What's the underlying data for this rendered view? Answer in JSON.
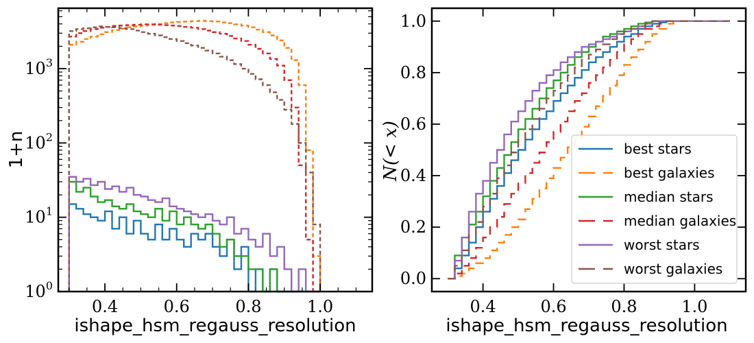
{
  "chart_data": [
    {
      "type": "histogram",
      "xlabel": "ishape_hsm_regauss_resolution",
      "ylabel": "1+n",
      "xlim": [
        0.27,
        1.145
      ],
      "ylim": [
        1,
        6500
      ],
      "yscale": "log",
      "x_ticks": [
        0.4,
        0.6,
        0.8,
        1.0
      ],
      "x_tick_labels": [
        "0.4",
        "0.6",
        "0.8",
        "1.0"
      ],
      "y_ticks": [
        1,
        10,
        100,
        1000
      ],
      "y_tick_labels": [
        {
          "base": "10",
          "exp": "0"
        },
        {
          "base": "10",
          "exp": "1"
        },
        {
          "base": "10",
          "exp": "2"
        },
        {
          "base": "10",
          "exp": "3"
        }
      ],
      "bin_edges": [
        0.3,
        0.32,
        0.34,
        0.36,
        0.38,
        0.4,
        0.42,
        0.44,
        0.46,
        0.48,
        0.5,
        0.52,
        0.54,
        0.56,
        0.58,
        0.6,
        0.62,
        0.64,
        0.66,
        0.68,
        0.7,
        0.72,
        0.74,
        0.76,
        0.78,
        0.8,
        0.82,
        0.84,
        0.86,
        0.88,
        0.9,
        0.92,
        0.94,
        0.96,
        0.98,
        1.0
      ],
      "series": [
        {
          "name": "best stars",
          "color": "#1f77b4",
          "dash": "solid",
          "values": [
            15,
            13,
            11,
            10,
            9,
            12,
            7,
            10,
            6,
            9,
            6,
            5,
            8,
            5,
            7,
            5,
            4,
            6,
            5,
            6,
            4,
            3,
            5,
            2,
            4,
            1,
            2,
            1,
            2,
            1,
            1,
            1,
            1,
            1,
            1
          ]
        },
        {
          "name": "best galaxies",
          "color": "#ff7f0e",
          "dash": "dashed",
          "values": [
            2100,
            2300,
            2500,
            2700,
            2900,
            3100,
            3300,
            3450,
            3600,
            3700,
            3800,
            3900,
            4000,
            4100,
            4200,
            4250,
            4300,
            4350,
            4400,
            4350,
            4300,
            4200,
            4100,
            3950,
            3800,
            3600,
            3350,
            3100,
            2800,
            2400,
            1900,
            1300,
            600,
            80,
            3
          ]
        },
        {
          "name": "median stars",
          "color": "#2ca02c",
          "dash": "solid",
          "values": [
            30,
            22,
            25,
            19,
            16,
            17,
            14,
            13,
            15,
            12,
            11,
            10,
            13,
            9,
            12,
            8,
            10,
            8,
            7,
            8,
            6,
            4,
            5,
            3,
            3,
            2,
            2,
            1,
            2,
            1,
            1,
            1,
            1,
            1,
            1
          ]
        },
        {
          "name": "median galaxies",
          "color": "#d62728",
          "dash": "dashed",
          "values": [
            2700,
            3000,
            3200,
            3400,
            3550,
            3650,
            3750,
            3800,
            3850,
            3900,
            3950,
            3950,
            3900,
            3850,
            3800,
            3750,
            3650,
            3550,
            3400,
            3250,
            3100,
            2950,
            2750,
            2550,
            2350,
            2100,
            1850,
            1600,
            1350,
            1100,
            700,
            300,
            50,
            5,
            1
          ]
        },
        {
          "name": "worst stars",
          "color": "#9467bd",
          "dash": "solid",
          "values": [
            35,
            30,
            33,
            27,
            30,
            24,
            26,
            22,
            25,
            20,
            19,
            17,
            16,
            18,
            14,
            13,
            12,
            11,
            10,
            11,
            9,
            8,
            10,
            6,
            7,
            5,
            4,
            6,
            3,
            4,
            2,
            1,
            2,
            1,
            1
          ]
        },
        {
          "name": "worst galaxies",
          "color": "#8c564b",
          "dash": "dashed",
          "values": [
            3200,
            3400,
            3500,
            3600,
            3700,
            3650,
            3600,
            3500,
            3400,
            3250,
            3100,
            2950,
            2800,
            2650,
            2500,
            2350,
            2200,
            2050,
            1900,
            1750,
            1600,
            1450,
            1300,
            1150,
            1000,
            850,
            720,
            600,
            480,
            380,
            280,
            180,
            100,
            40,
            8
          ]
        }
      ]
    },
    {
      "type": "line",
      "xlabel": "N(< x)",
      "xlabel_note": "",
      "x_axis_label": "ishape_hsm_regauss_resolution",
      "y_axis_label": "N(< x)",
      "xlim": [
        0.255,
        1.145
      ],
      "ylim": [
        -0.05,
        1.05
      ],
      "x_ticks": [
        0.4,
        0.6,
        0.8,
        1.0
      ],
      "x_tick_labels": [
        "0.4",
        "0.6",
        "0.8",
        "1.0"
      ],
      "y_ticks": [
        0.0,
        0.2,
        0.4,
        0.6,
        0.8,
        1.0
      ],
      "y_tick_labels": [
        "0.0",
        "0.2",
        "0.4",
        "0.6",
        "0.8",
        "1.0"
      ],
      "legend_position": "lower-right",
      "x": [
        0.3,
        0.32,
        0.34,
        0.36,
        0.38,
        0.4,
        0.42,
        0.44,
        0.46,
        0.48,
        0.5,
        0.52,
        0.54,
        0.56,
        0.58,
        0.6,
        0.62,
        0.64,
        0.66,
        0.68,
        0.7,
        0.72,
        0.74,
        0.76,
        0.78,
        0.8,
        0.82,
        0.84,
        0.86,
        0.88,
        0.9,
        0.92,
        0.94,
        0.96,
        0.98,
        1.0,
        1.02,
        1.04,
        1.06,
        1.08
      ],
      "series": [
        {
          "name": "best stars",
          "color": "#1f77b4",
          "dash": "solid",
          "values": [
            0.0,
            0.04,
            0.09,
            0.14,
            0.2,
            0.26,
            0.31,
            0.36,
            0.41,
            0.46,
            0.5,
            0.54,
            0.58,
            0.62,
            0.65,
            0.69,
            0.72,
            0.75,
            0.78,
            0.81,
            0.84,
            0.86,
            0.88,
            0.9,
            0.92,
            0.94,
            0.95,
            0.97,
            0.98,
            0.99,
            0.995,
            1.0,
            1.0,
            1.0,
            1.0,
            1.0,
            1.0,
            1.0,
            1.0,
            1.0
          ]
        },
        {
          "name": "best galaxies",
          "color": "#ff7f0e",
          "dash": "dashed",
          "values": [
            0.0,
            0.01,
            0.02,
            0.04,
            0.06,
            0.08,
            0.11,
            0.14,
            0.17,
            0.2,
            0.23,
            0.27,
            0.31,
            0.35,
            0.39,
            0.43,
            0.47,
            0.51,
            0.55,
            0.59,
            0.63,
            0.67,
            0.71,
            0.75,
            0.79,
            0.83,
            0.86,
            0.89,
            0.92,
            0.95,
            0.97,
            0.99,
            1.0,
            1.0,
            1.0,
            1.0,
            1.0,
            1.0,
            1.0,
            1.0
          ]
        },
        {
          "name": "median stars",
          "color": "#2ca02c",
          "dash": "solid",
          "values": [
            0.0,
            0.09,
            0.16,
            0.21,
            0.26,
            0.32,
            0.38,
            0.43,
            0.48,
            0.53,
            0.58,
            0.62,
            0.66,
            0.7,
            0.74,
            0.77,
            0.8,
            0.83,
            0.86,
            0.88,
            0.9,
            0.92,
            0.94,
            0.95,
            0.96,
            0.97,
            0.98,
            0.99,
            0.995,
            1.0,
            1.0,
            1.0,
            1.0,
            1.0,
            1.0,
            1.0,
            1.0,
            1.0,
            1.0,
            1.0
          ]
        },
        {
          "name": "median galaxies",
          "color": "#d62728",
          "dash": "dashed",
          "values": [
            0.0,
            0.02,
            0.05,
            0.08,
            0.12,
            0.16,
            0.2,
            0.24,
            0.29,
            0.33,
            0.37,
            0.41,
            0.45,
            0.49,
            0.53,
            0.57,
            0.61,
            0.65,
            0.69,
            0.72,
            0.76,
            0.79,
            0.82,
            0.85,
            0.88,
            0.91,
            0.93,
            0.95,
            0.97,
            0.98,
            0.99,
            1.0,
            1.0,
            1.0,
            1.0,
            1.0,
            1.0,
            1.0,
            1.0,
            1.0
          ]
        },
        {
          "name": "worst stars",
          "color": "#9467bd",
          "dash": "solid",
          "values": [
            0.0,
            0.07,
            0.16,
            0.26,
            0.33,
            0.38,
            0.45,
            0.5,
            0.56,
            0.61,
            0.65,
            0.69,
            0.73,
            0.76,
            0.79,
            0.81,
            0.84,
            0.86,
            0.88,
            0.9,
            0.91,
            0.92,
            0.93,
            0.94,
            0.95,
            0.96,
            0.97,
            0.98,
            0.99,
            1.0,
            1.0,
            1.0,
            1.0,
            1.0,
            1.0,
            1.0,
            1.0,
            1.0,
            1.0,
            1.0
          ]
        },
        {
          "name": "worst galaxies",
          "color": "#8c564b",
          "dash": "dashed",
          "values": [
            0.0,
            0.05,
            0.11,
            0.17,
            0.22,
            0.28,
            0.33,
            0.39,
            0.44,
            0.49,
            0.54,
            0.58,
            0.62,
            0.66,
            0.7,
            0.73,
            0.76,
            0.79,
            0.82,
            0.85,
            0.87,
            0.89,
            0.91,
            0.93,
            0.95,
            0.96,
            0.97,
            0.98,
            0.99,
            1.0,
            1.0,
            1.0,
            1.0,
            1.0,
            1.0,
            1.0,
            1.0,
            1.0,
            1.0,
            1.0
          ]
        }
      ]
    }
  ]
}
